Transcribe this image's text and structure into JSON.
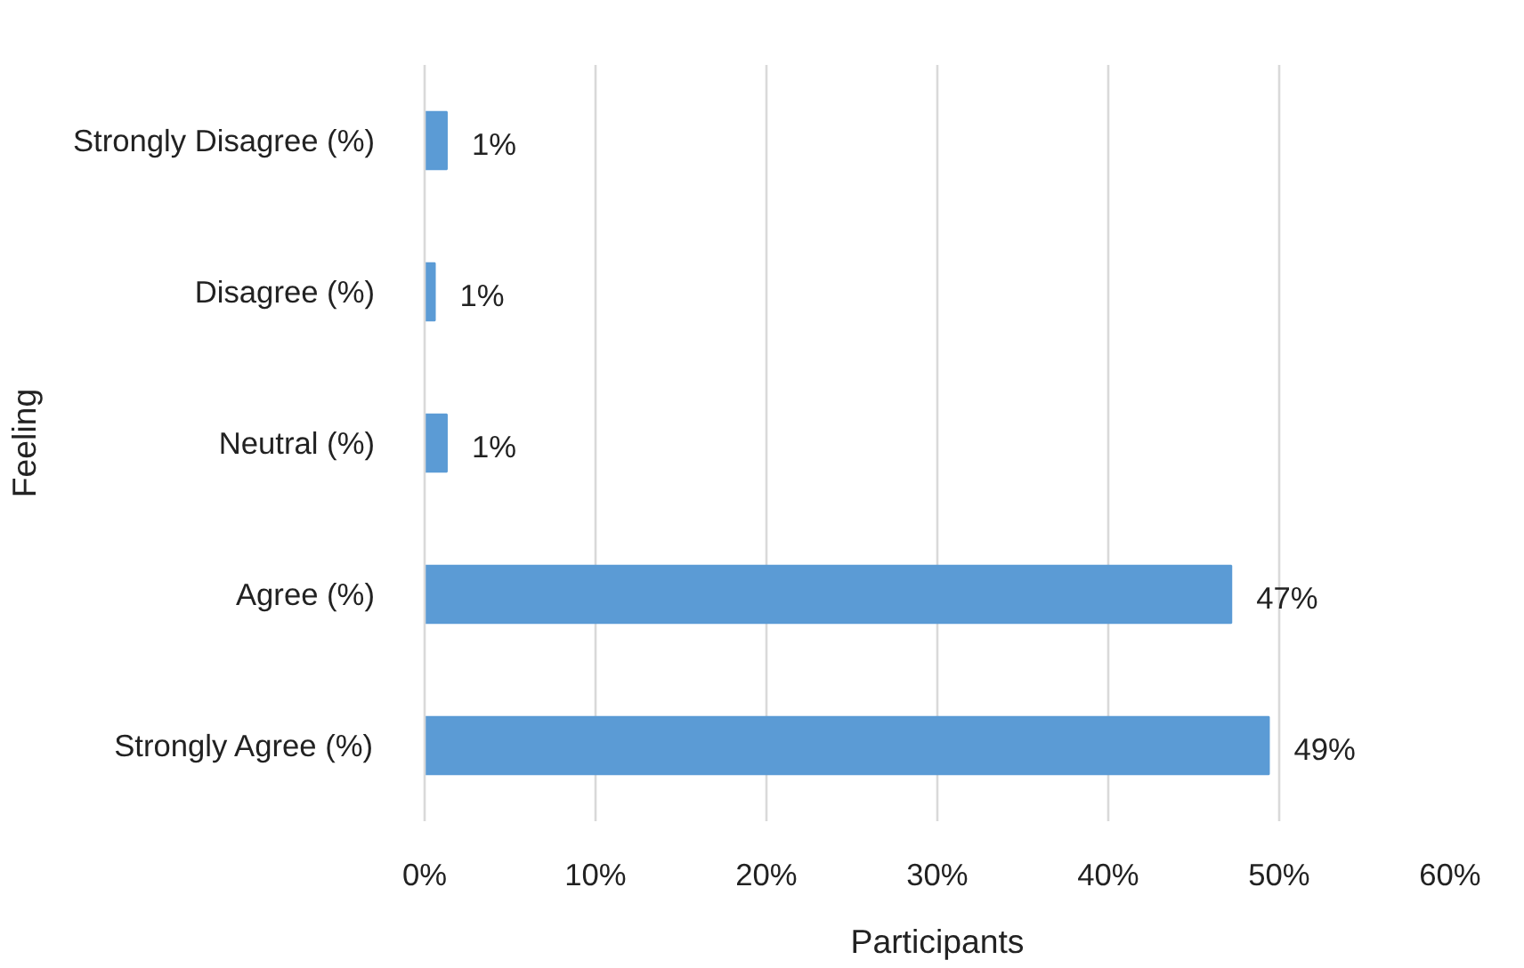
{
  "chart_data": {
    "type": "bar",
    "orientation": "horizontal",
    "xlabel": "Participants",
    "ylabel": "Feeling",
    "categories": [
      "Strongly Disagree (%)",
      "Disagree (%)",
      "Neutral (%)",
      "Agree (%)",
      "Strongly Agree (%)"
    ],
    "values": [
      1.3,
      0.6,
      1.3,
      47.2,
      49.4
    ],
    "value_labels": [
      "1%",
      "1%",
      "1%",
      "47%",
      "49%"
    ],
    "color": "#5b9bd5",
    "xlim": [
      0,
      60
    ],
    "xticks": [
      {
        "value": 0,
        "label": "0%"
      },
      {
        "value": 10,
        "label": "10%"
      },
      {
        "value": 20,
        "label": "20%"
      },
      {
        "value": 30,
        "label": "30%"
      },
      {
        "value": 40,
        "label": "40%"
      },
      {
        "value": 50,
        "label": "50%"
      },
      {
        "value": 60,
        "label": "60%"
      }
    ],
    "grid": "x"
  }
}
